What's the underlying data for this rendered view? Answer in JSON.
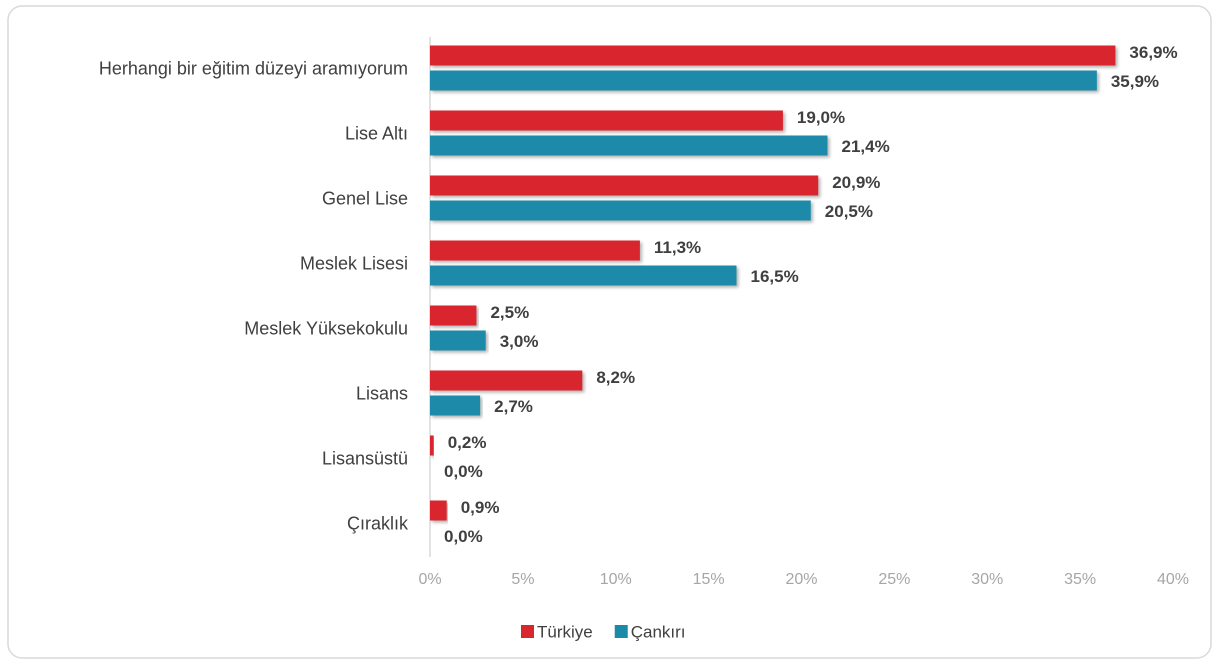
{
  "chart_data": {
    "type": "hbar",
    "categories": [
      "Herhangi bir eğitim düzeyi aramıyorum",
      "Lise Altı",
      "Genel Lise",
      "Meslek Lisesi",
      "Meslek Yüksekokulu",
      "Lisans",
      "Lisansüstü",
      "Çıraklık"
    ],
    "series": [
      {
        "name": "Türkiye",
        "color": "#d9262e",
        "values": [
          36.9,
          19.0,
          20.9,
          11.3,
          2.5,
          8.2,
          0.2,
          0.9
        ],
        "value_labels": [
          "36,9%",
          "19,0%",
          "20,9%",
          "11,3%",
          "2,5%",
          "8,2%",
          "0,2%",
          "0,9%"
        ]
      },
      {
        "name": "Çankırı",
        "color": "#1a8aa8",
        "values": [
          35.9,
          21.4,
          20.5,
          16.5,
          3.0,
          2.7,
          0.0,
          0.0
        ],
        "value_labels": [
          "35,9%",
          "21,4%",
          "20,5%",
          "16,5%",
          "3,0%",
          "2,7%",
          "0,0%",
          "0,0%"
        ]
      }
    ],
    "xlim": [
      0,
      40
    ],
    "xticks": [
      {
        "value": 0,
        "label": "0%"
      },
      {
        "value": 5,
        "label": "5%"
      },
      {
        "value": 10,
        "label": "10%"
      },
      {
        "value": 15,
        "label": "15%"
      },
      {
        "value": 20,
        "label": "20%"
      },
      {
        "value": 25,
        "label": "25%"
      },
      {
        "value": 30,
        "label": "30%"
      },
      {
        "value": 35,
        "label": "35%"
      },
      {
        "value": 40,
        "label": "40%"
      }
    ],
    "grid": false,
    "legend": "bottom"
  }
}
